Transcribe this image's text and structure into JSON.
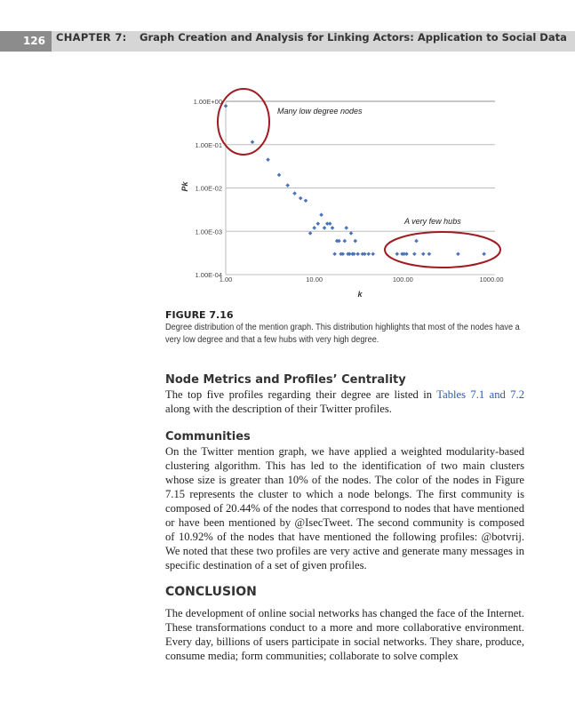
{
  "header": {
    "page_number": "126",
    "chapter": "CHAPTER 7:",
    "title": "Graph Creation and Analysis for Linking Actors: Application to Social Data"
  },
  "chart_data": {
    "type": "scatter",
    "xlabel": "k",
    "ylabel": "Pk",
    "x_scale": "log",
    "y_scale": "log",
    "xlim": [
      1,
      1000
    ],
    "ylim": [
      0.0001,
      1
    ],
    "x_ticks": [
      "1.00",
      "10.00",
      "100.00",
      "1000.00"
    ],
    "y_ticks": [
      "1.00E+00",
      "1.00E-01",
      "1.00E-02",
      "1.00E-03",
      "1.00E-04"
    ],
    "grid": "horizontal",
    "marker_color": "#4a74b8",
    "annotation_color": "#a01c22",
    "annotations": [
      "Many low degree nodes",
      "A very few hubs"
    ],
    "points": [
      [
        1,
        0.78
      ],
      [
        2,
        0.115
      ],
      [
        3,
        0.045
      ],
      [
        4,
        0.02
      ],
      [
        5,
        0.0115
      ],
      [
        6,
        0.0075
      ],
      [
        7,
        0.0058
      ],
      [
        8,
        0.0051
      ],
      [
        9,
        0.0009
      ],
      [
        10,
        0.0012
      ],
      [
        11,
        0.0015
      ],
      [
        12,
        0.0024
      ],
      [
        13,
        0.0012
      ],
      [
        14,
        0.0015
      ],
      [
        15,
        0.0015
      ],
      [
        16,
        0.0012
      ],
      [
        17,
        0.0003
      ],
      [
        18,
        0.0006
      ],
      [
        19,
        0.0006
      ],
      [
        20,
        0.0003
      ],
      [
        21,
        0.0003
      ],
      [
        22,
        0.0006
      ],
      [
        23,
        0.0012
      ],
      [
        24,
        0.0003
      ],
      [
        25,
        0.0003
      ],
      [
        26,
        0.0009
      ],
      [
        27,
        0.0003
      ],
      [
        28,
        0.0003
      ],
      [
        29,
        0.0006
      ],
      [
        31,
        0.0003
      ],
      [
        35,
        0.0003
      ],
      [
        37,
        0.0003
      ],
      [
        41,
        0.0003
      ],
      [
        46,
        0.0003
      ],
      [
        86,
        0.0003
      ],
      [
        98,
        0.0003
      ],
      [
        103,
        0.0003
      ],
      [
        110,
        0.0003
      ],
      [
        135,
        0.0003
      ],
      [
        142,
        0.0006
      ],
      [
        170,
        0.0003
      ],
      [
        198,
        0.0003
      ],
      [
        420,
        0.0003
      ],
      [
        825,
        0.0003
      ]
    ]
  },
  "figure": {
    "label": "FIGURE 7.16",
    "caption": "Degree distribution of the mention graph. This distribution highlights that most of the nodes have a very low degree and that a few hubs with very high degree."
  },
  "sections": [
    {
      "heading": "Node Metrics and Profiles’ Centrality",
      "pre": "The top five profiles regarding their degree are listed in ",
      "link": "Tables 7.1 and 7.2",
      "post": " along with the description of their Twitter profiles."
    },
    {
      "heading": "Communities",
      "text": "On the Twitter mention graph, we have applied a weighted modularity-based clustering algorithm. This has led to the identification of two main clusters whose size is greater than 10% of the nodes. The color of the nodes in Figure 7.15 represents the cluster to which a node belongs. The first community is composed of 20.44% of the nodes that correspond to nodes that have mentioned or have been mentioned by @IsecTweet. The second community is composed of 10.92% of the nodes that have mentioned the following profiles: @botvrij. We noted that these two profiles are very active and generate many messages in specific destination of a set of given profiles."
    },
    {
      "heading": "CONCLUSION",
      "text": "The development of online social networks has changed the face of the Internet. These transformations conduct to a more and more collaborative environment. Every day, billions of users participate in social networks. They share, produce, consume media; form communities; collaborate to solve complex"
    }
  ]
}
